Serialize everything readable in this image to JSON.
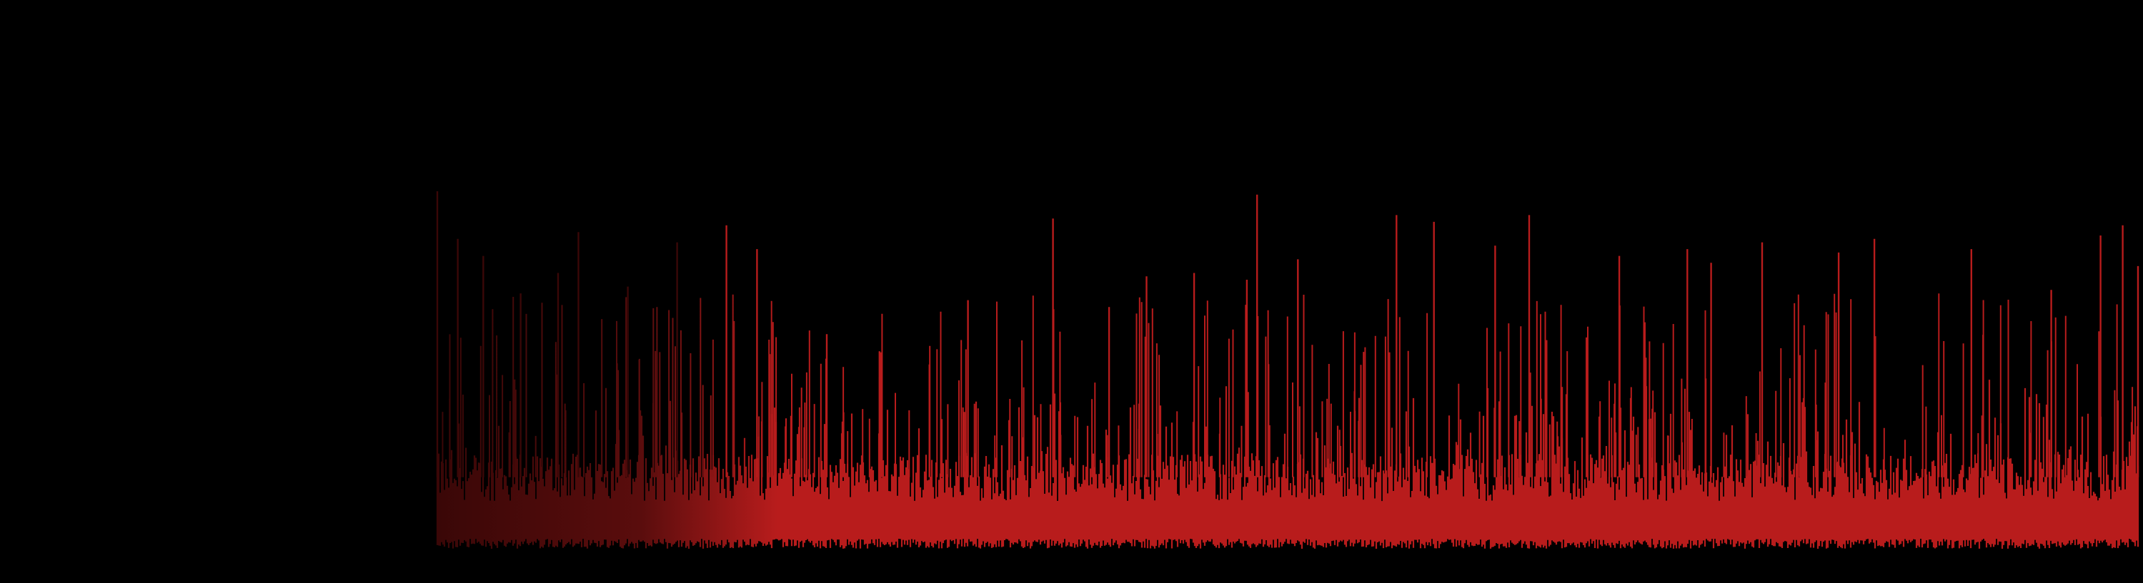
{
  "chart_data": {
    "type": "area",
    "title": "",
    "xlabel": "",
    "ylabel": "",
    "axes_visible": false,
    "grid": false,
    "legend": "none",
    "background_color": "#000000",
    "series": [
      {
        "color": "#b81c1c",
        "fade_in_color": "#3a0707",
        "baseline": 0.0,
        "noise_floor": 0.16,
        "floor_jitter": 0.07,
        "x": [
          0,
          1
        ],
        "values": [
          0.0,
          0.0
        ],
        "peaks": [
          {
            "x": 0.0,
            "y": 1.0
          },
          {
            "x": 0.012,
            "y": 0.86
          },
          {
            "x": 0.027,
            "y": 0.81
          },
          {
            "x": 0.049,
            "y": 0.7
          },
          {
            "x": 0.071,
            "y": 0.76
          },
          {
            "x": 0.083,
            "y": 0.88
          },
          {
            "x": 0.112,
            "y": 0.72
          },
          {
            "x": 0.141,
            "y": 0.85
          },
          {
            "x": 0.17,
            "y": 0.9
          },
          {
            "x": 0.188,
            "y": 0.83
          },
          {
            "x": 0.229,
            "y": 0.58
          },
          {
            "x": 0.26,
            "y": 0.53
          },
          {
            "x": 0.312,
            "y": 0.68
          },
          {
            "x": 0.362,
            "y": 0.92
          },
          {
            "x": 0.395,
            "y": 0.66
          },
          {
            "x": 0.417,
            "y": 0.75
          },
          {
            "x": 0.445,
            "y": 0.76
          },
          {
            "x": 0.476,
            "y": 0.74
          },
          {
            "x": 0.482,
            "y": 0.99
          },
          {
            "x": 0.506,
            "y": 0.8
          },
          {
            "x": 0.564,
            "y": 0.93
          },
          {
            "x": 0.586,
            "y": 0.91
          },
          {
            "x": 0.622,
            "y": 0.84
          },
          {
            "x": 0.642,
            "y": 0.93
          },
          {
            "x": 0.695,
            "y": 0.81
          },
          {
            "x": 0.735,
            "y": 0.83
          },
          {
            "x": 0.749,
            "y": 0.79
          },
          {
            "x": 0.779,
            "y": 0.85
          },
          {
            "x": 0.824,
            "y": 0.82
          },
          {
            "x": 0.845,
            "y": 0.86
          },
          {
            "x": 0.902,
            "y": 0.83
          },
          {
            "x": 0.949,
            "y": 0.71
          },
          {
            "x": 0.978,
            "y": 0.87
          },
          {
            "x": 0.991,
            "y": 0.9
          },
          {
            "x": 1.0,
            "y": 0.78
          }
        ]
      }
    ]
  }
}
